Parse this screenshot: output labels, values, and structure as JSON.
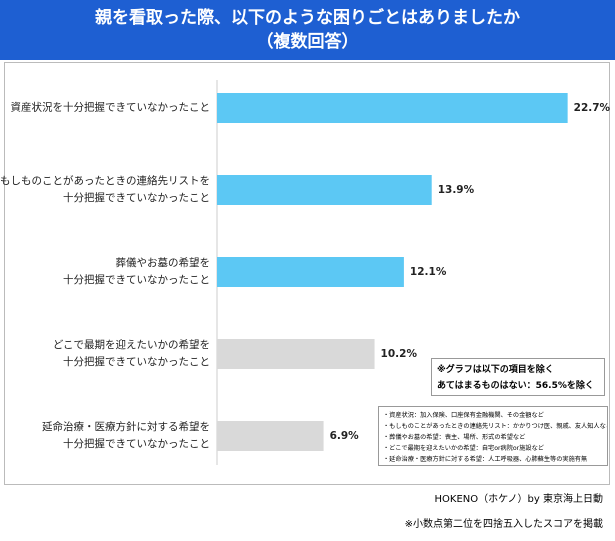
{
  "chart_data": {
    "type": "barh",
    "title": "親を看取った際、以下のような困りごとはありましたか",
    "subtitle": "（複数回答）",
    "categories": [
      "資産状況を十分把握できていなかったこと",
      "もしものことがあったときの連絡先リストを\n十分把握できていなかったこと",
      "葬儀やお墓の希望を\n十分把握できていなかったこと",
      "どこで最期を迎えたいかの希望を\n十分把握できていなかったこと",
      "延命治療・医療方針に対する希望を\n十分把握できていなかったこと"
    ],
    "values": [
      22.7,
      13.9,
      12.1,
      10.2,
      6.9
    ],
    "value_labels": [
      "22.7%",
      "13.9%",
      "12.1%",
      "10.2%",
      "6.9%"
    ],
    "colors": [
      "#5cc8f4",
      "#5cc8f4",
      "#5cc8f4",
      "#d9d9d9",
      "#d9d9d9"
    ],
    "xlim": [
      0,
      23.5
    ],
    "exclusion_note": [
      "※グラフは以下の項目を除く",
      "あてはまるものはない：56.5%を除く"
    ],
    "definitions": [
      "・資産状況：加入保険、口座保有金融機関、その金額など",
      "・もしものことがあったときの連絡先リスト：かかりつけ医、親戚、友人知人など",
      "・葬儀やお墓の希望：喪主、場所、形式の希望など",
      "・どこで最期を迎えたいかの希望：自宅or病院or施設など",
      "・延命治療・医療方針に対する希望：人工呼吸器、心肺蘇生等の実施有無"
    ],
    "source": "HOKENO（ホケノ）by 東京海上日動",
    "footnote": "※小数点第二位を四捨五入したスコアを掲載"
  }
}
